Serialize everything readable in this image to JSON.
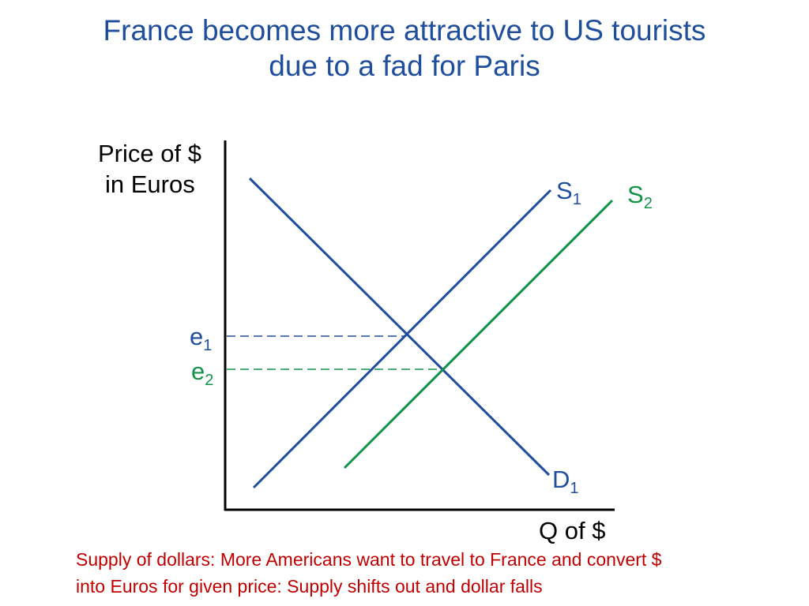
{
  "title": {
    "line1": "France becomes more attractive to US tourists",
    "line2": "due to a fad for Paris"
  },
  "axes": {
    "y_label_line1": "Price of $",
    "y_label_line2": "in Euros",
    "x_label": "Q of $"
  },
  "curves": {
    "s1": {
      "main": "S",
      "sub": "1",
      "color": "#1f4e9c"
    },
    "s2": {
      "main": "S",
      "sub": "2",
      "color": "#13934a"
    },
    "d1": {
      "main": "D",
      "sub": "1",
      "color": "#1f4e9c"
    }
  },
  "equilibria": {
    "e1": {
      "main": "e",
      "sub": "1",
      "color": "#1f4e9c"
    },
    "e2": {
      "main": "e",
      "sub": "2",
      "color": "#13934a"
    }
  },
  "caption": {
    "line1": "Supply of dollars: More Americans want to travel to France and convert $",
    "line2": "into Euros for given price: Supply shifts out and dollar falls"
  },
  "colors": {
    "title": "#1f4e9c",
    "axis": "#000000",
    "caption": "#c00000"
  }
}
